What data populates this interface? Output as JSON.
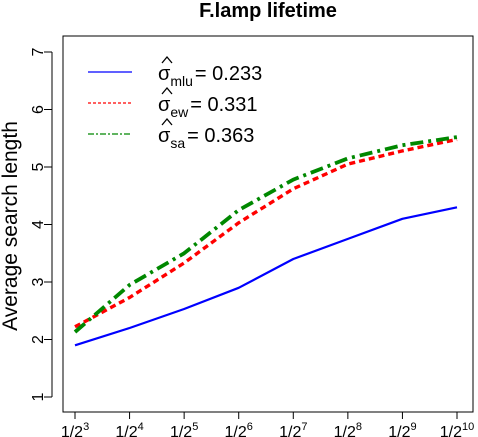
{
  "chart_data": {
    "type": "line",
    "title": "F.lamp lifetime",
    "xlabel": "",
    "ylabel": "Average search length",
    "x_ticks": [
      {
        "base": "1/2",
        "exp": "3"
      },
      {
        "base": "1/2",
        "exp": "4"
      },
      {
        "base": "1/2",
        "exp": "5"
      },
      {
        "base": "1/2",
        "exp": "6"
      },
      {
        "base": "1/2",
        "exp": "7"
      },
      {
        "base": "1/2",
        "exp": "8"
      },
      {
        "base": "1/2",
        "exp": "9"
      },
      {
        "base": "1/2",
        "exp": "10"
      }
    ],
    "y_ticks": [
      "1",
      "2",
      "3",
      "4",
      "5",
      "6",
      "7"
    ],
    "ylim": [
      1,
      7
    ],
    "grid": false,
    "legend_position": "top-left",
    "series": [
      {
        "label_main": "σ",
        "label_sub": "mlu",
        "label_value": "= 0.233",
        "color": "#0000ff",
        "style": "solid",
        "values": [
          1.9,
          2.2,
          2.53,
          2.9,
          3.4,
          3.75,
          4.1,
          4.3
        ]
      },
      {
        "label_main": "σ",
        "label_sub": "ew",
        "label_value": "= 0.331",
        "color": "#ff0000",
        "style": "dashed",
        "values": [
          2.22,
          2.73,
          3.33,
          4.03,
          4.62,
          5.05,
          5.28,
          5.48
        ]
      },
      {
        "label_main": "σ",
        "label_sub": "sa",
        "label_value": "= 0.363",
        "color": "#008800",
        "style": "dashdot",
        "values": [
          2.13,
          2.95,
          3.5,
          4.25,
          4.78,
          5.15,
          5.38,
          5.52
        ]
      }
    ]
  }
}
